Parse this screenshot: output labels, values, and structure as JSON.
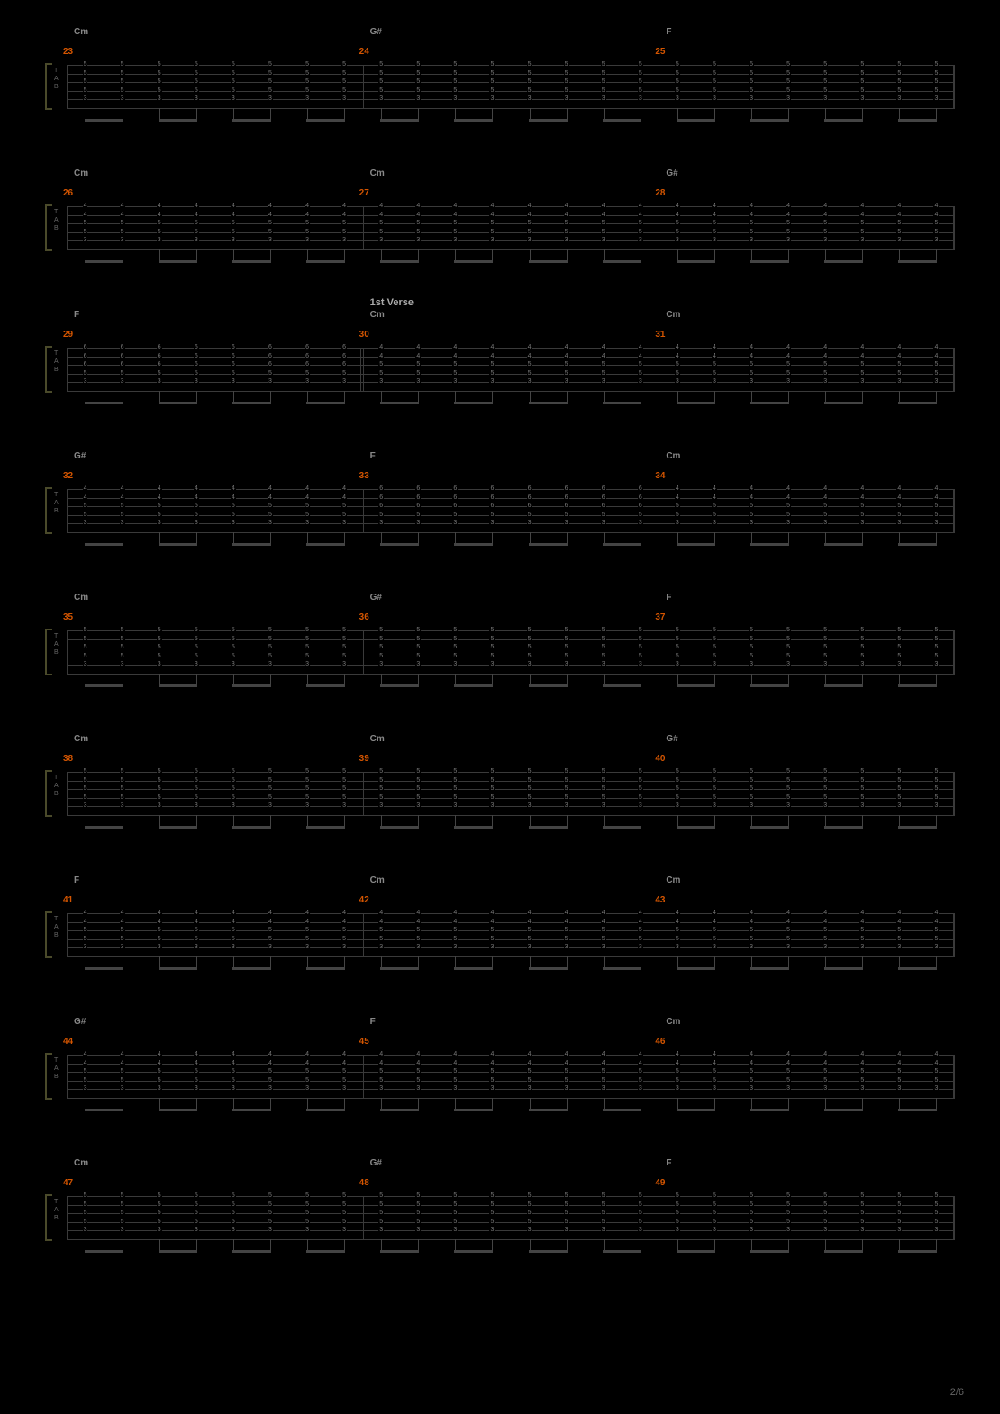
{
  "page_number": "2/6",
  "colors": {
    "background": "#000000",
    "staff_line": "#3a3a3a",
    "measure_num": "#d45500",
    "chord": "#888888",
    "section": "#aaaaaa",
    "fret": "#777777",
    "bracket": "#4a4a2a"
  },
  "tab_letters": [
    "T",
    "A",
    "B"
  ],
  "string_count": 6,
  "notes_per_measure": 8,
  "beam_groups_per_measure": 4,
  "systems": [
    {
      "measures": [
        {
          "num": "23",
          "chord": "Cm",
          "frets": [
            "5",
            "5",
            "5",
            "5",
            "3"
          ]
        },
        {
          "num": "24",
          "chord": "G#",
          "frets": [
            "5",
            "5",
            "5",
            "5",
            "3"
          ]
        },
        {
          "num": "25",
          "chord": "F",
          "frets": [
            "5",
            "5",
            "5",
            "5",
            "3"
          ]
        }
      ]
    },
    {
      "measures": [
        {
          "num": "26",
          "chord": "Cm",
          "frets": [
            "4",
            "4",
            "5",
            "5",
            "3"
          ]
        },
        {
          "num": "27",
          "chord": "Cm",
          "frets": [
            "4",
            "4",
            "5",
            "5",
            "3"
          ]
        },
        {
          "num": "28",
          "chord": "G#",
          "frets": [
            "4",
            "4",
            "5",
            "5",
            "3"
          ]
        }
      ]
    },
    {
      "measures": [
        {
          "num": "29",
          "chord": "F",
          "frets": [
            "6",
            "6",
            "6",
            "5",
            "3"
          ]
        },
        {
          "num": "30",
          "chord": "Cm",
          "section": "1st Verse",
          "double_bar_start": true,
          "frets": [
            "4",
            "4",
            "5",
            "5",
            "3"
          ]
        },
        {
          "num": "31",
          "chord": "Cm",
          "frets": [
            "4",
            "4",
            "5",
            "5",
            "3"
          ]
        }
      ]
    },
    {
      "measures": [
        {
          "num": "32",
          "chord": "G#",
          "frets": [
            "4",
            "4",
            "5",
            "5",
            "3"
          ]
        },
        {
          "num": "33",
          "chord": "F",
          "frets": [
            "6",
            "6",
            "6",
            "5",
            "3"
          ]
        },
        {
          "num": "34",
          "chord": "Cm",
          "frets": [
            "4",
            "4",
            "5",
            "5",
            "3"
          ]
        }
      ]
    },
    {
      "measures": [
        {
          "num": "35",
          "chord": "Cm",
          "frets": [
            "5",
            "5",
            "5",
            "5",
            "3"
          ]
        },
        {
          "num": "36",
          "chord": "G#",
          "frets": [
            "5",
            "5",
            "5",
            "5",
            "3"
          ]
        },
        {
          "num": "37",
          "chord": "F",
          "frets": [
            "5",
            "5",
            "5",
            "5",
            "3"
          ]
        }
      ]
    },
    {
      "measures": [
        {
          "num": "38",
          "chord": "Cm",
          "frets": [
            "5",
            "5",
            "5",
            "5",
            "3"
          ]
        },
        {
          "num": "39",
          "chord": "Cm",
          "frets": [
            "5",
            "5",
            "5",
            "5",
            "3"
          ]
        },
        {
          "num": "40",
          "chord": "G#",
          "frets": [
            "5",
            "5",
            "5",
            "5",
            "3"
          ]
        }
      ]
    },
    {
      "measures": [
        {
          "num": "41",
          "chord": "F",
          "frets": [
            "4",
            "4",
            "5",
            "5",
            "3"
          ]
        },
        {
          "num": "42",
          "chord": "Cm",
          "frets": [
            "4",
            "4",
            "5",
            "5",
            "3"
          ]
        },
        {
          "num": "43",
          "chord": "Cm",
          "frets": [
            "4",
            "4",
            "5",
            "5",
            "3"
          ]
        }
      ]
    },
    {
      "measures": [
        {
          "num": "44",
          "chord": "G#",
          "frets": [
            "4",
            "4",
            "5",
            "5",
            "3"
          ]
        },
        {
          "num": "45",
          "chord": "F",
          "frets": [
            "4",
            "4",
            "5",
            "5",
            "3"
          ]
        },
        {
          "num": "46",
          "chord": "Cm",
          "frets": [
            "4",
            "4",
            "5",
            "5",
            "3"
          ]
        }
      ]
    },
    {
      "measures": [
        {
          "num": "47",
          "chord": "Cm",
          "frets": [
            "5",
            "5",
            "5",
            "5",
            "3"
          ]
        },
        {
          "num": "48",
          "chord": "G#",
          "frets": [
            "5",
            "5",
            "5",
            "5",
            "3"
          ]
        },
        {
          "num": "49",
          "chord": "F",
          "frets": [
            "5",
            "5",
            "5",
            "5",
            "3"
          ]
        }
      ]
    }
  ]
}
